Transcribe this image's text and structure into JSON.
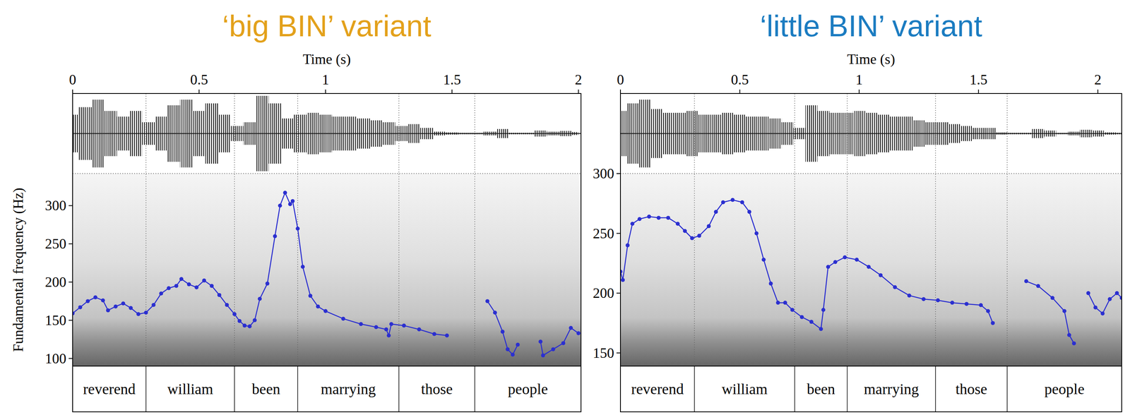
{
  "chart_data": [
    {
      "type": "line",
      "title": "‘big BIN’ variant",
      "color": "#E3A11B",
      "xlabel": "Time (s)",
      "ylabel": "Fundamental frequency (Hz)",
      "xlim": [
        0,
        2.01
      ],
      "xticks": [
        0,
        0.5,
        1,
        1.5,
        2
      ],
      "ylim": [
        90,
        342
      ],
      "yticks": [
        100,
        150,
        200,
        250,
        300
      ],
      "x": [
        0,
        0.03,
        0.06,
        0.09,
        0.12,
        0.14,
        0.17,
        0.2,
        0.23,
        0.26,
        0.29,
        0.32,
        0.35,
        0.38,
        0.41,
        0.43,
        0.46,
        0.49,
        0.52,
        0.55,
        0.58,
        0.61,
        0.64,
        0.66,
        0.68,
        0.7,
        0.72,
        0.74,
        0.77,
        0.8,
        0.82,
        0.84,
        0.86,
        0.87,
        0.89,
        0.91,
        0.94,
        0.97,
        1.0,
        1.07,
        1.14,
        1.2,
        1.24,
        1.25,
        1.26,
        1.31,
        1.37,
        1.43,
        1.48,
        1.52,
        1.64,
        1.67,
        1.7,
        1.72,
        1.74,
        1.76,
        1.8,
        1.85,
        1.86,
        1.9,
        1.94,
        1.97,
        2.0
      ],
      "series": [
        {
          "color": "#2B2FD0",
          "marker": "circle",
          "line_style": "solid",
          "values": [
            159,
            167,
            175,
            180,
            176,
            163,
            168,
            172,
            166,
            158,
            160,
            170,
            185,
            192,
            195,
            204,
            197,
            193,
            202,
            195,
            183,
            170,
            158,
            149,
            143,
            142,
            150,
            178,
            198,
            260,
            300,
            317,
            302,
            306,
            270,
            220,
            182,
            168,
            162,
            152,
            145,
            141,
            138,
            130,
            145,
            143,
            138,
            132,
            130,
            null,
            175,
            160,
            135,
            112,
            105,
            118,
            null,
            122,
            104,
            112,
            120,
            140,
            133
          ]
        }
      ],
      "waveform": {
        "x": [
          0,
          0.05,
          0.1,
          0.15,
          0.2,
          0.25,
          0.3,
          0.35,
          0.4,
          0.45,
          0.5,
          0.55,
          0.6,
          0.65,
          0.7,
          0.75,
          0.8,
          0.85,
          0.9,
          0.95,
          1.0,
          1.05,
          1.1,
          1.15,
          1.2,
          1.25,
          1.3,
          1.35,
          1.4,
          1.45,
          1.5,
          1.55,
          1.6,
          1.65,
          1.7,
          1.75,
          1.8,
          1.85,
          1.9,
          1.95,
          2.0
        ],
        "values": [
          0.5,
          0.7,
          0.9,
          0.6,
          0.45,
          0.6,
          0.3,
          0.45,
          0.75,
          0.9,
          0.6,
          0.8,
          0.5,
          0.2,
          0.3,
          1.0,
          0.8,
          0.4,
          0.5,
          0.55,
          0.5,
          0.45,
          0.45,
          0.4,
          0.35,
          0.3,
          0.2,
          0.25,
          0.15,
          0.05,
          0.03,
          0.02,
          0.02,
          0.05,
          0.12,
          0.02,
          0.02,
          0.08,
          0.05,
          0.07,
          0.04
        ]
      },
      "words": [
        {
          "label": "reverend",
          "start": 0,
          "end": 0.29
        },
        {
          "label": "william",
          "start": 0.29,
          "end": 0.64
        },
        {
          "label": "been",
          "start": 0.64,
          "end": 0.89
        },
        {
          "label": "marrying",
          "start": 0.89,
          "end": 1.29
        },
        {
          "label": "those",
          "start": 1.29,
          "end": 1.59
        },
        {
          "label": "people",
          "start": 1.59,
          "end": 2.01
        }
      ]
    },
    {
      "type": "line",
      "title": "‘little BIN’ variant",
      "color": "#1B7CC1",
      "xlabel": "Time (s)",
      "xlim": [
        0,
        2.1
      ],
      "xticks": [
        0,
        0.5,
        1,
        1.5,
        2
      ],
      "ylim": [
        139,
        300
      ],
      "yticks": [
        150,
        200,
        250,
        300
      ],
      "x": [
        0,
        0.01,
        0.03,
        0.05,
        0.08,
        0.12,
        0.16,
        0.2,
        0.24,
        0.27,
        0.3,
        0.33,
        0.37,
        0.4,
        0.43,
        0.47,
        0.51,
        0.54,
        0.57,
        0.6,
        0.63,
        0.66,
        0.69,
        0.72,
        0.76,
        0.8,
        0.84,
        0.85,
        0.87,
        0.9,
        0.94,
        0.99,
        1.04,
        1.09,
        1.15,
        1.21,
        1.27,
        1.33,
        1.39,
        1.45,
        1.51,
        1.54,
        1.56,
        1.6,
        1.7,
        1.75,
        1.81,
        1.86,
        1.88,
        1.9,
        1.93,
        1.96,
        1.99,
        2.02,
        2.05,
        2.08,
        2.1
      ],
      "series": [
        {
          "color": "#2B2FD0",
          "marker": "circle",
          "line_style": "solid",
          "values": [
            218,
            211,
            240,
            258,
            262,
            264,
            263,
            263,
            258,
            252,
            246,
            248,
            256,
            268,
            276,
            278,
            276,
            268,
            250,
            228,
            208,
            192,
            192,
            186,
            180,
            176,
            170,
            186,
            222,
            226,
            230,
            228,
            222,
            215,
            205,
            198,
            195,
            194,
            192,
            191,
            190,
            185,
            175,
            null,
            210,
            206,
            196,
            185,
            165,
            158,
            null,
            200,
            188,
            183,
            195,
            200,
            196
          ]
        }
      ],
      "waveform": {
        "x": [
          0,
          0.05,
          0.1,
          0.15,
          0.2,
          0.25,
          0.3,
          0.35,
          0.4,
          0.45,
          0.5,
          0.55,
          0.6,
          0.65,
          0.7,
          0.75,
          0.8,
          0.85,
          0.9,
          0.95,
          1.0,
          1.05,
          1.1,
          1.15,
          1.2,
          1.25,
          1.3,
          1.35,
          1.4,
          1.45,
          1.5,
          1.55,
          1.6,
          1.65,
          1.7,
          1.75,
          1.8,
          1.85,
          1.9,
          1.95,
          2.0,
          2.05,
          2.1
        ],
        "values": [
          0.6,
          0.8,
          0.9,
          0.65,
          0.55,
          0.55,
          0.6,
          0.5,
          0.5,
          0.55,
          0.5,
          0.45,
          0.45,
          0.4,
          0.3,
          0.15,
          0.75,
          0.6,
          0.55,
          0.55,
          0.6,
          0.55,
          0.5,
          0.45,
          0.45,
          0.35,
          0.3,
          0.3,
          0.25,
          0.2,
          0.15,
          0.15,
          0.03,
          0.02,
          0.02,
          0.12,
          0.08,
          0.02,
          0.05,
          0.1,
          0.08,
          0.03,
          0.02
        ]
      },
      "words": [
        {
          "label": "reverend",
          "start": 0,
          "end": 0.31
        },
        {
          "label": "william",
          "start": 0.31,
          "end": 0.73
        },
        {
          "label": "been",
          "start": 0.73,
          "end": 0.95
        },
        {
          "label": "marrying",
          "start": 0.95,
          "end": 1.32
        },
        {
          "label": "those",
          "start": 1.32,
          "end": 1.62
        },
        {
          "label": "people",
          "start": 1.62,
          "end": 2.1
        }
      ]
    }
  ]
}
